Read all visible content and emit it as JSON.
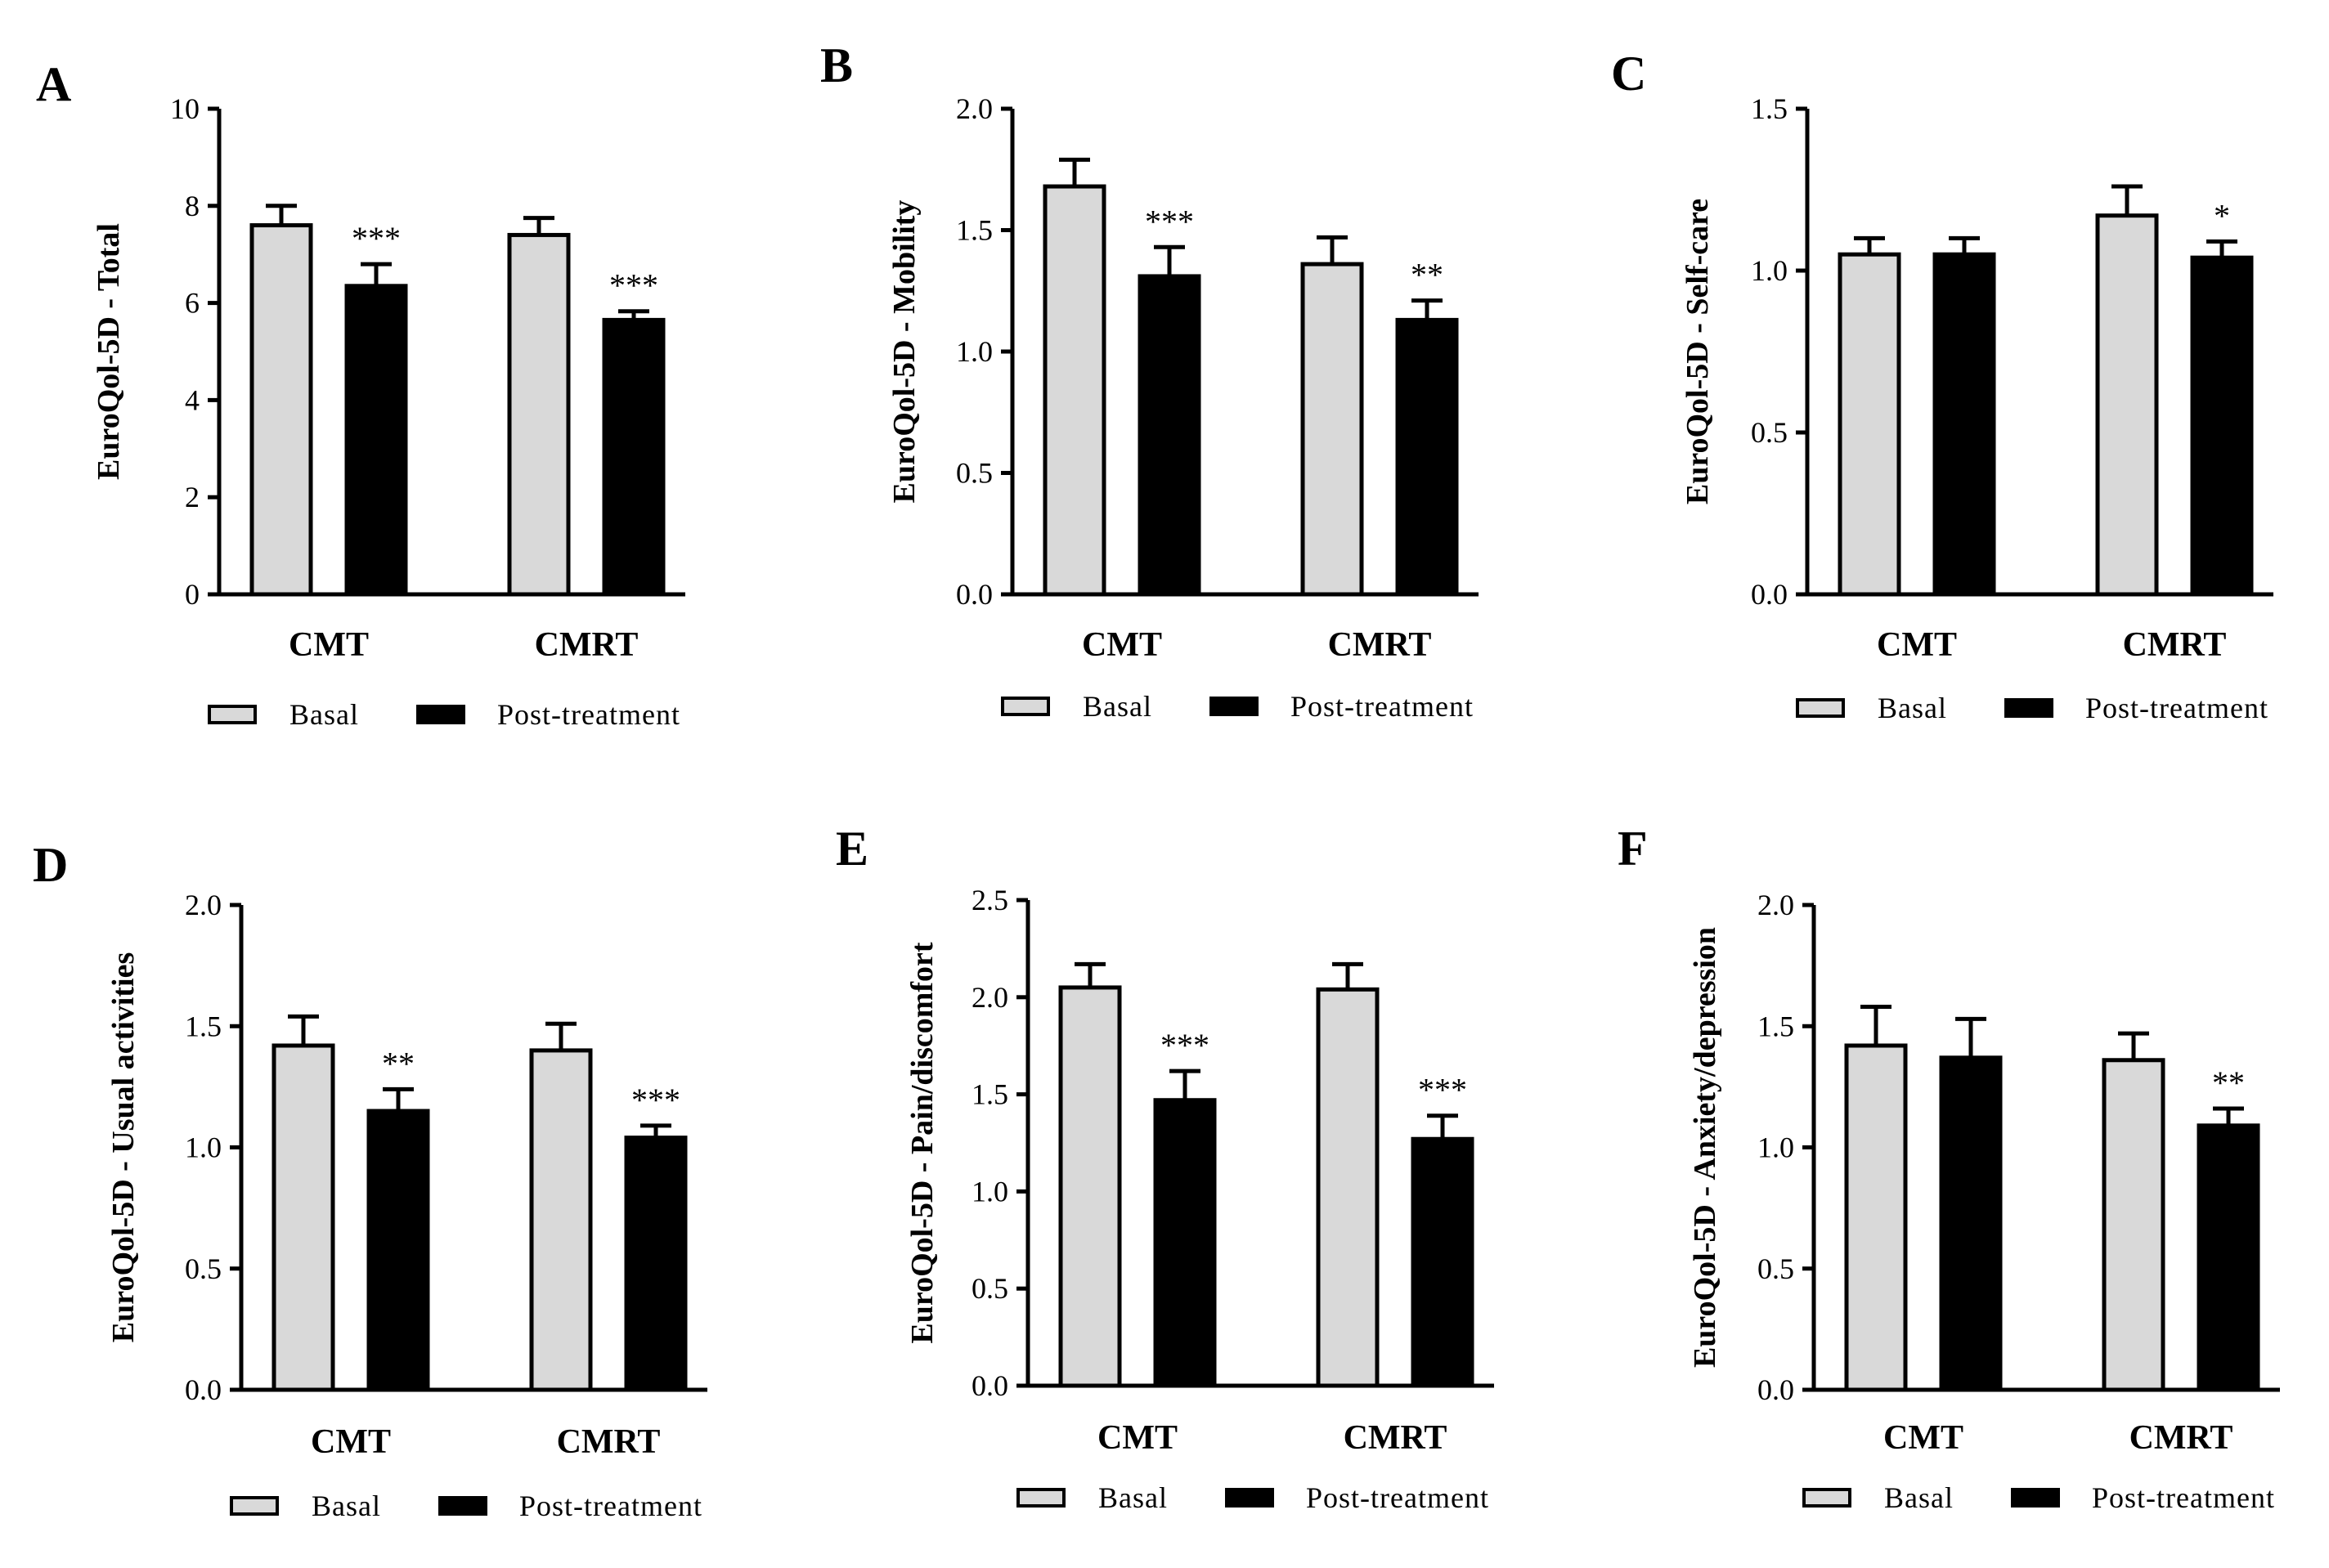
{
  "figure": {
    "legend": {
      "basal": "Basal",
      "post": "Post-treatment"
    },
    "colors": {
      "basal": "#d9d9d9",
      "post": "#000000",
      "stroke": "#000000"
    }
  },
  "chart_data": [
    {
      "panel": "A",
      "type": "bar",
      "ylabel": "EuroQol-5D - Total",
      "categories": [
        "CMT",
        "CMRT"
      ],
      "ylim": [
        0,
        10
      ],
      "yticks": [
        0,
        2,
        4,
        6,
        8,
        10
      ],
      "ytick_labels": [
        "0",
        "2",
        "4",
        "6",
        "8",
        "10"
      ],
      "series": [
        {
          "name": "Basal",
          "values": [
            7.6,
            7.4
          ],
          "errors": [
            0.4,
            0.35
          ]
        },
        {
          "name": "Post-treatment",
          "values": [
            6.35,
            5.65
          ],
          "errors": [
            0.45,
            0.18
          ]
        }
      ],
      "significance": [
        "***",
        "***"
      ]
    },
    {
      "panel": "B",
      "type": "bar",
      "ylabel": "EuroQol-5D - Mobility",
      "categories": [
        "CMT",
        "CMRT"
      ],
      "ylim": [
        0,
        2.0
      ],
      "yticks": [
        0,
        0.5,
        1.0,
        1.5,
        2.0
      ],
      "ytick_labels": [
        "0.0",
        "0.5",
        "1.0",
        "1.5",
        "2.0"
      ],
      "series": [
        {
          "name": "Basal",
          "values": [
            1.68,
            1.36
          ],
          "errors": [
            0.11,
            0.11
          ]
        },
        {
          "name": "Post-treatment",
          "values": [
            1.31,
            1.13
          ],
          "errors": [
            0.12,
            0.08
          ]
        }
      ],
      "significance": [
        "***",
        "**"
      ]
    },
    {
      "panel": "C",
      "type": "bar",
      "ylabel": "EuroQol-5D - Self-care",
      "categories": [
        "CMT",
        "CMRT"
      ],
      "ylim": [
        0,
        1.5
      ],
      "yticks": [
        0,
        0.5,
        1.0,
        1.5
      ],
      "ytick_labels": [
        "0.0",
        "0.5",
        "1.0",
        "1.5"
      ],
      "series": [
        {
          "name": "Basal",
          "values": [
            1.05,
            1.17
          ],
          "errors": [
            0.05,
            0.09
          ]
        },
        {
          "name": "Post-treatment",
          "values": [
            1.05,
            1.04
          ],
          "errors": [
            0.05,
            0.05
          ]
        }
      ],
      "significance": [
        "",
        "*"
      ]
    },
    {
      "panel": "D",
      "type": "bar",
      "ylabel": "EuroQol-5D - Usual activities",
      "categories": [
        "CMT",
        "CMRT"
      ],
      "ylim": [
        0,
        2.0
      ],
      "yticks": [
        0,
        0.5,
        1.0,
        1.5,
        2.0
      ],
      "ytick_labels": [
        "0.0",
        "0.5",
        "1.0",
        "1.5",
        "2.0"
      ],
      "series": [
        {
          "name": "Basal",
          "values": [
            1.42,
            1.4
          ],
          "errors": [
            0.12,
            0.11
          ]
        },
        {
          "name": "Post-treatment",
          "values": [
            1.15,
            1.04
          ],
          "errors": [
            0.09,
            0.05
          ]
        }
      ],
      "significance": [
        "**",
        "***"
      ]
    },
    {
      "panel": "E",
      "type": "bar",
      "ylabel": "EuroQol-5D - Pain/discomfort",
      "categories": [
        "CMT",
        "CMRT"
      ],
      "ylim": [
        0,
        2.5
      ],
      "yticks": [
        0,
        0.5,
        1.0,
        1.5,
        2.0,
        2.5
      ],
      "ytick_labels": [
        "0.0",
        "0.5",
        "1.0",
        "1.5",
        "2.0",
        "2.5"
      ],
      "series": [
        {
          "name": "Basal",
          "values": [
            2.05,
            2.04
          ],
          "errors": [
            0.12,
            0.13
          ]
        },
        {
          "name": "Post-treatment",
          "values": [
            1.47,
            1.27
          ],
          "errors": [
            0.15,
            0.12
          ]
        }
      ],
      "significance": [
        "***",
        "***"
      ]
    },
    {
      "panel": "F",
      "type": "bar",
      "ylabel": "EuroQol-5D - Anxiety/depression",
      "categories": [
        "CMT",
        "CMRT"
      ],
      "ylim": [
        0,
        2.0
      ],
      "yticks": [
        0,
        0.5,
        1.0,
        1.5,
        2.0
      ],
      "ytick_labels": [
        "0.0",
        "0.5",
        "1.0",
        "1.5",
        "2.0"
      ],
      "series": [
        {
          "name": "Basal",
          "values": [
            1.42,
            1.36
          ],
          "errors": [
            0.16,
            0.11
          ]
        },
        {
          "name": "Post-treatment",
          "values": [
            1.37,
            1.09
          ],
          "errors": [
            0.16,
            0.07
          ]
        }
      ],
      "significance": [
        "",
        "**"
      ]
    }
  ]
}
